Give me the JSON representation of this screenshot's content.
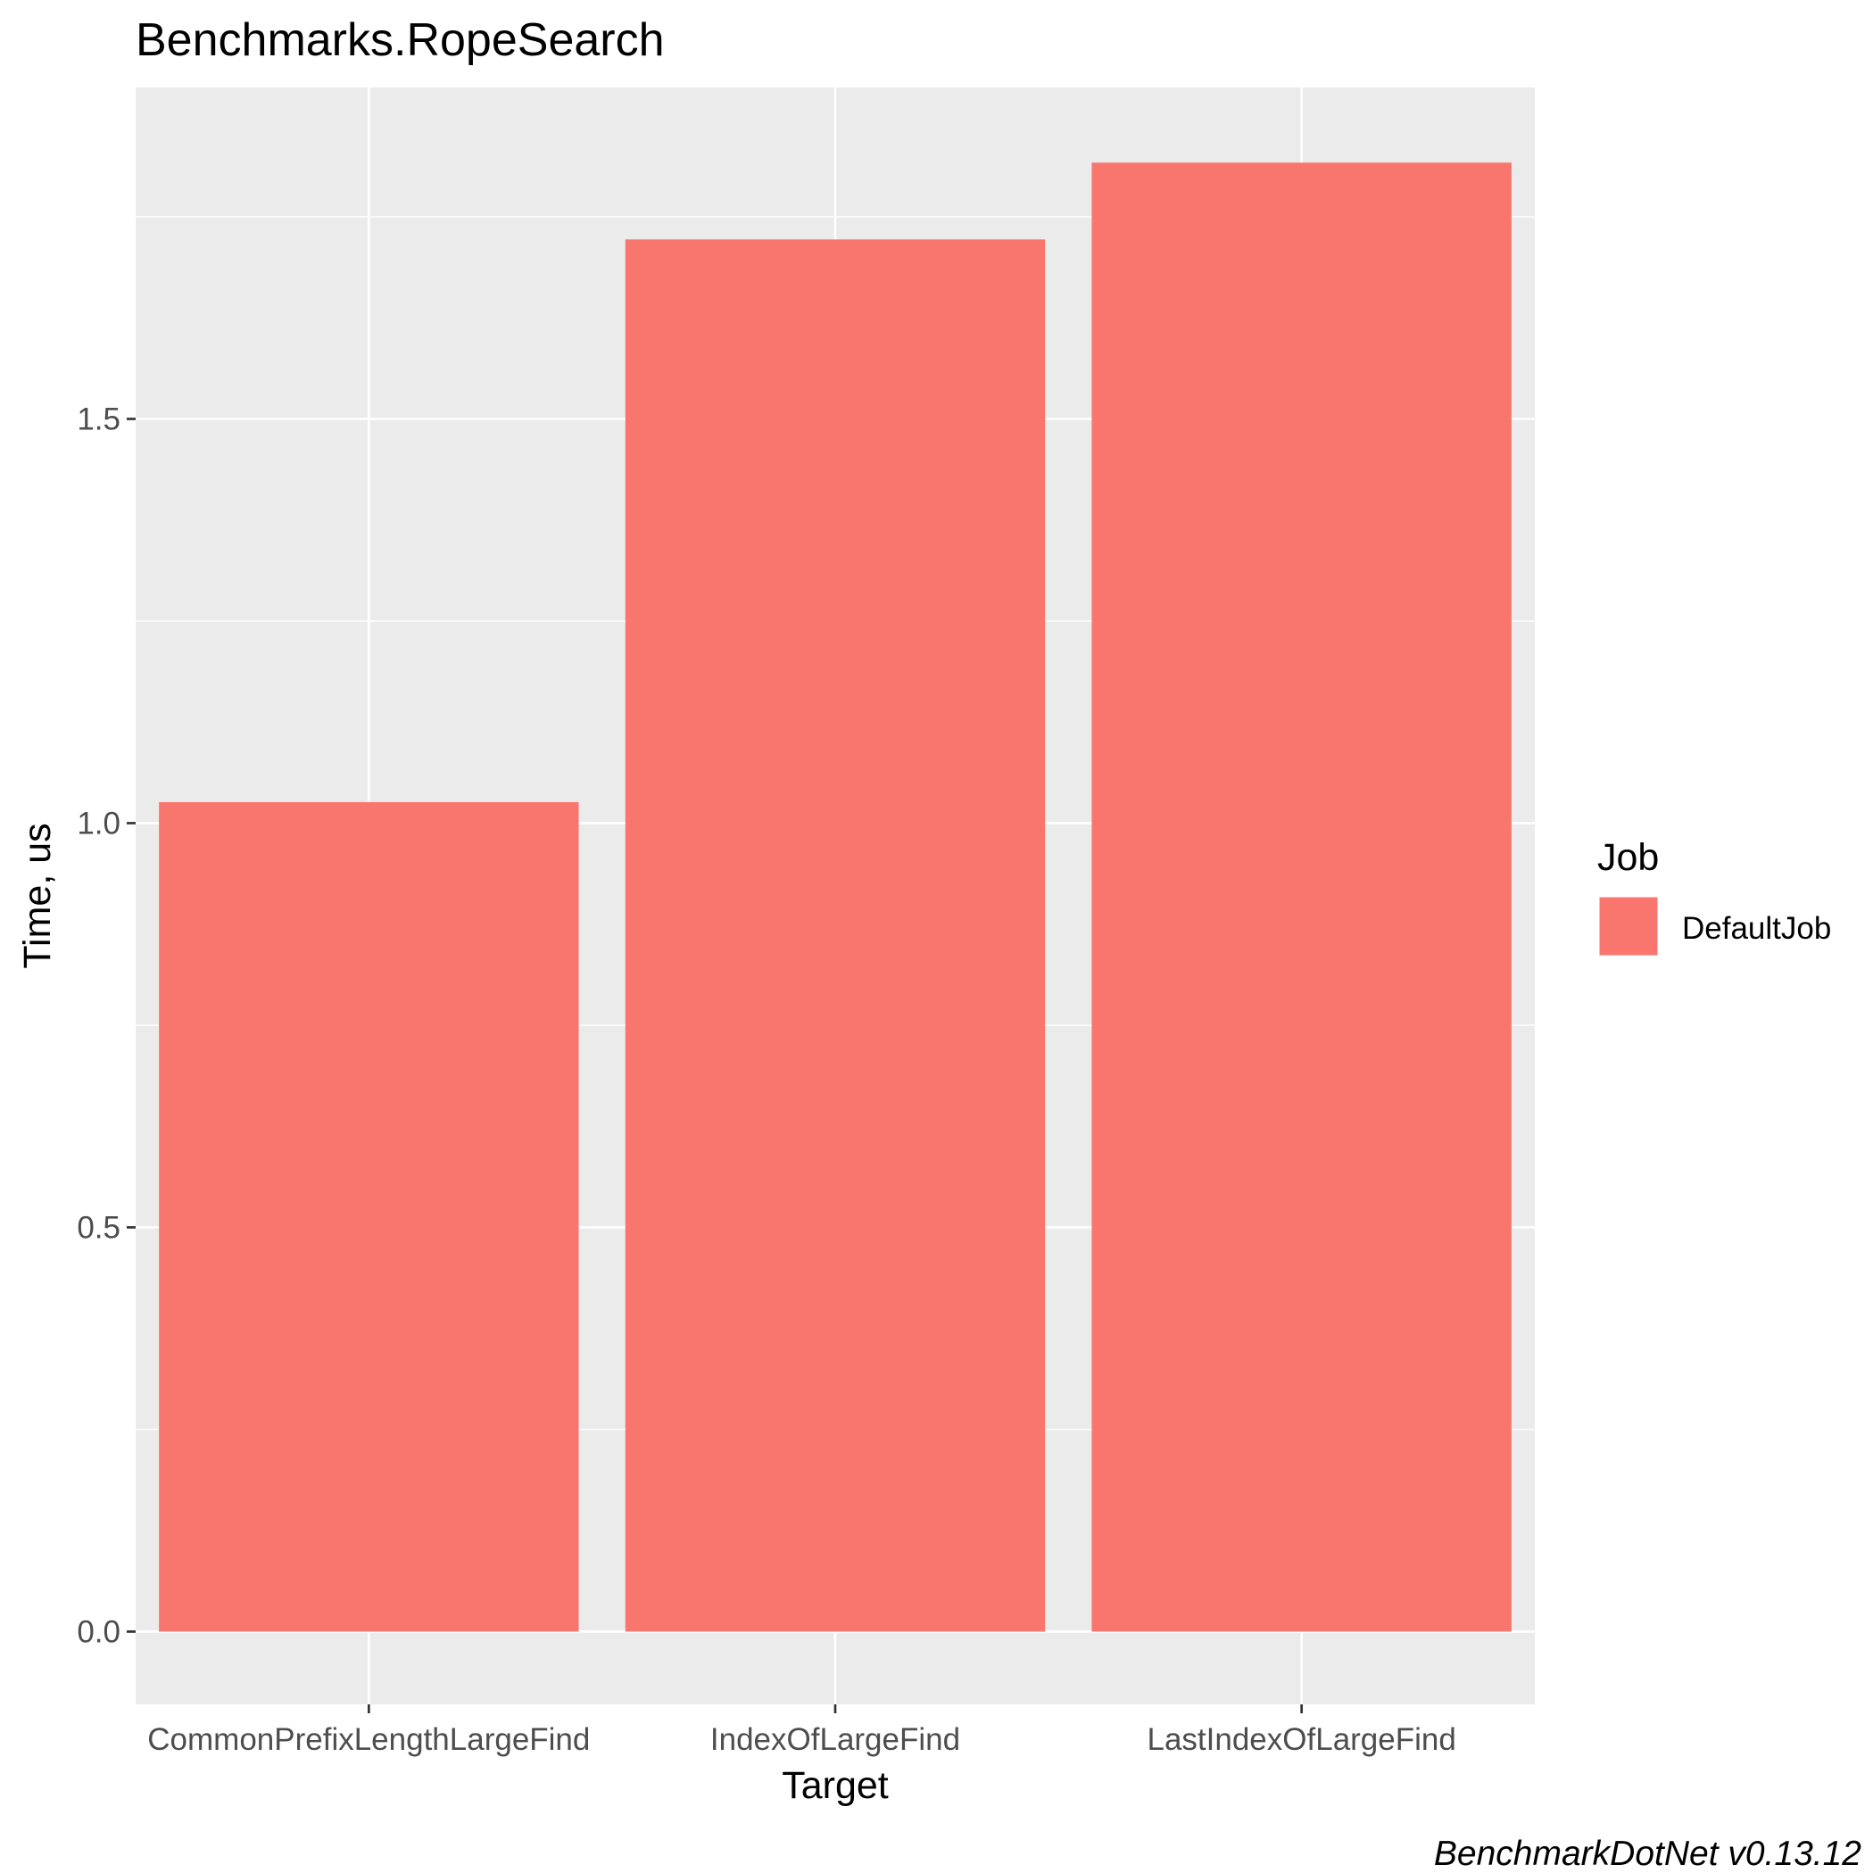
{
  "chart_data": {
    "type": "bar",
    "title": "Benchmarks.RopeSearch",
    "xlabel": "Target",
    "ylabel": "Time, us",
    "categories": [
      "CommonPrefixLengthLargeFind",
      "IndexOfLargeFind",
      "LastIndexOfLargeFind"
    ],
    "series": [
      {
        "name": "DefaultJob",
        "values": [
          1.026,
          1.722,
          1.817
        ]
      }
    ],
    "ylim": [
      -0.09,
      1.91
    ],
    "yticks": [
      0.0,
      0.5,
      1.0,
      1.5
    ],
    "ytick_labels": [
      "0.0",
      "0.5",
      "1.0",
      "1.5"
    ],
    "grid": true,
    "legend": {
      "title": "Job",
      "position": "right"
    },
    "caption": "BenchmarkDotNet v0.13.12",
    "colors": {
      "bar": "#F8766D",
      "panel": "#EBEBEB",
      "grid": "#FFFFFF"
    }
  }
}
